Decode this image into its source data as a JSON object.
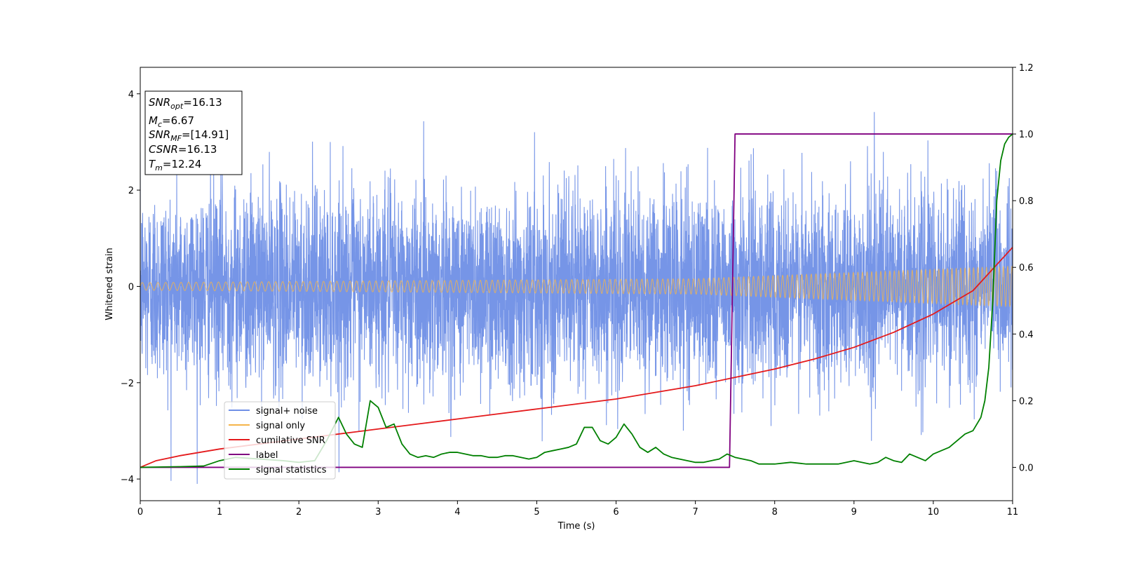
{
  "chart_data": {
    "type": "line",
    "xlabel": "Time (s)",
    "ylabel": "Whitened strain",
    "xlim": [
      0,
      11
    ],
    "ylim_left": [
      -4.45,
      4.55
    ],
    "ylim_right": [
      -0.1,
      1.2
    ],
    "x_ticks": [
      "0",
      "1",
      "2",
      "3",
      "4",
      "5",
      "6",
      "7",
      "8",
      "9",
      "10",
      "11"
    ],
    "y_left_ticks": [
      "−4",
      "−2",
      "0",
      "2",
      "4"
    ],
    "y_left_tick_values": [
      -4,
      -2,
      0,
      2,
      4
    ],
    "y_right_ticks": [
      "0.0",
      "0.2",
      "0.4",
      "0.6",
      "0.8",
      "1.0",
      "1.2"
    ],
    "y_right_tick_values": [
      0.0,
      0.2,
      0.4,
      0.6,
      0.8,
      1.0,
      1.2
    ],
    "legend_position": "lower-left",
    "info_box": {
      "snr_opt": "=16.13",
      "mc": "=6.67",
      "snr_mf": "=[14.91]",
      "csnr": "=16.13",
      "tm": "=12.24"
    },
    "series": [
      {
        "name": "signal+ noise",
        "axis": "left",
        "color": "#6f8fe6",
        "description": "whitened noise ~ N(0,1), peaks to ±4",
        "amplitude_std": 1.0
      },
      {
        "name": "signal only",
        "axis": "left",
        "color": "#f5b54a",
        "amplitude": {
          "x": [
            0,
            7,
            11
          ],
          "y": [
            0.08,
            0.16,
            0.42
          ]
        }
      },
      {
        "name": "cumilative SNR",
        "axis": "right",
        "color": "#e41a1c",
        "x": [
          0,
          0.2,
          0.5,
          1,
          1.5,
          2,
          2.5,
          3,
          3.5,
          4,
          4.5,
          5,
          5.5,
          6,
          6.5,
          7,
          7.5,
          8,
          8.5,
          9,
          9.5,
          10,
          10.5,
          11
        ],
        "y": [
          0.0,
          0.02,
          0.035,
          0.055,
          0.07,
          0.085,
          0.1,
          0.115,
          0.13,
          0.145,
          0.16,
          0.175,
          0.19,
          0.205,
          0.225,
          0.245,
          0.27,
          0.295,
          0.325,
          0.36,
          0.405,
          0.46,
          0.53,
          0.66
        ]
      },
      {
        "name": "label",
        "axis": "right",
        "color": "#800080",
        "x": [
          0,
          7.43,
          7.5,
          11
        ],
        "y": [
          0,
          0,
          1,
          1
        ]
      },
      {
        "name": "signal statistics",
        "axis": "right",
        "color": "#008000",
        "x": [
          0,
          0.5,
          0.8,
          1.0,
          1.2,
          1.5,
          1.8,
          2.0,
          2.2,
          2.35,
          2.5,
          2.6,
          2.7,
          2.8,
          2.9,
          3.0,
          3.1,
          3.2,
          3.3,
          3.4,
          3.5,
          3.6,
          3.7,
          3.8,
          3.9,
          4.0,
          4.1,
          4.2,
          4.3,
          4.4,
          4.5,
          4.6,
          4.7,
          4.8,
          4.9,
          5.0,
          5.1,
          5.2,
          5.3,
          5.4,
          5.5,
          5.6,
          5.7,
          5.8,
          5.9,
          6.0,
          6.1,
          6.2,
          6.3,
          6.4,
          6.5,
          6.6,
          6.7,
          6.8,
          6.9,
          7.0,
          7.1,
          7.2,
          7.3,
          7.4,
          7.5,
          7.6,
          7.7,
          7.8,
          8.0,
          8.2,
          8.4,
          8.6,
          8.8,
          9.0,
          9.2,
          9.3,
          9.4,
          9.5,
          9.6,
          9.7,
          9.8,
          9.9,
          10.0,
          10.1,
          10.2,
          10.3,
          10.4,
          10.5,
          10.6,
          10.65,
          10.7,
          10.75,
          10.8,
          10.85,
          10.9,
          10.95,
          11.0
        ],
        "y": [
          0.0,
          0.002,
          0.004,
          0.02,
          0.03,
          0.025,
          0.02,
          0.015,
          0.02,
          0.08,
          0.15,
          0.1,
          0.07,
          0.06,
          0.2,
          0.18,
          0.12,
          0.13,
          0.07,
          0.04,
          0.03,
          0.035,
          0.03,
          0.04,
          0.045,
          0.045,
          0.04,
          0.035,
          0.035,
          0.03,
          0.03,
          0.035,
          0.035,
          0.03,
          0.025,
          0.03,
          0.045,
          0.05,
          0.055,
          0.06,
          0.07,
          0.12,
          0.12,
          0.08,
          0.07,
          0.09,
          0.13,
          0.1,
          0.06,
          0.045,
          0.06,
          0.04,
          0.03,
          0.025,
          0.02,
          0.015,
          0.015,
          0.02,
          0.025,
          0.04,
          0.03,
          0.025,
          0.02,
          0.01,
          0.01,
          0.015,
          0.01,
          0.01,
          0.01,
          0.02,
          0.01,
          0.015,
          0.03,
          0.02,
          0.015,
          0.04,
          0.03,
          0.02,
          0.04,
          0.05,
          0.06,
          0.08,
          0.1,
          0.11,
          0.15,
          0.2,
          0.3,
          0.5,
          0.8,
          0.92,
          0.97,
          0.99,
          1.0
        ]
      }
    ]
  }
}
